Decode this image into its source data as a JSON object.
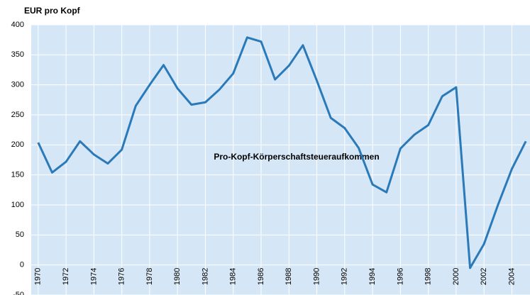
{
  "chart_data": {
    "type": "line",
    "y_label": "EUR pro Kopf",
    "annotation": "Pro-Kopf-Körperschaftsteueraufkommen",
    "x": [
      1970,
      1971,
      1972,
      1973,
      1974,
      1975,
      1976,
      1977,
      1978,
      1979,
      1980,
      1981,
      1982,
      1983,
      1984,
      1985,
      1986,
      1987,
      1988,
      1989,
      1990,
      1991,
      1992,
      1993,
      1994,
      1995,
      1996,
      1997,
      1998,
      1999,
      2000,
      2001,
      2002,
      2003,
      2004,
      2005
    ],
    "series": [
      {
        "color": "#2a7ab9",
        "values": [
          204,
          154,
          172,
          206,
          184,
          169,
          192,
          265,
          300,
          333,
          294,
          267,
          271,
          292,
          319,
          379,
          372,
          309,
          332,
          366,
          307,
          245,
          228,
          195,
          134,
          121,
          194,
          217,
          233,
          281,
          296,
          -5,
          35,
          100,
          160,
          206
        ]
      }
    ],
    "xlim": [
      1969.5,
      2005.3
    ],
    "xticks": [
      1970,
      1972,
      1974,
      1976,
      1978,
      1980,
      1982,
      1984,
      1986,
      1988,
      1990,
      1992,
      1994,
      1996,
      1998,
      2000,
      2002,
      2004
    ],
    "ylim": [
      -50,
      400
    ],
    "yticks": [
      -50,
      0,
      50,
      100,
      150,
      200,
      250,
      300,
      350,
      400
    ],
    "grid": true
  }
}
